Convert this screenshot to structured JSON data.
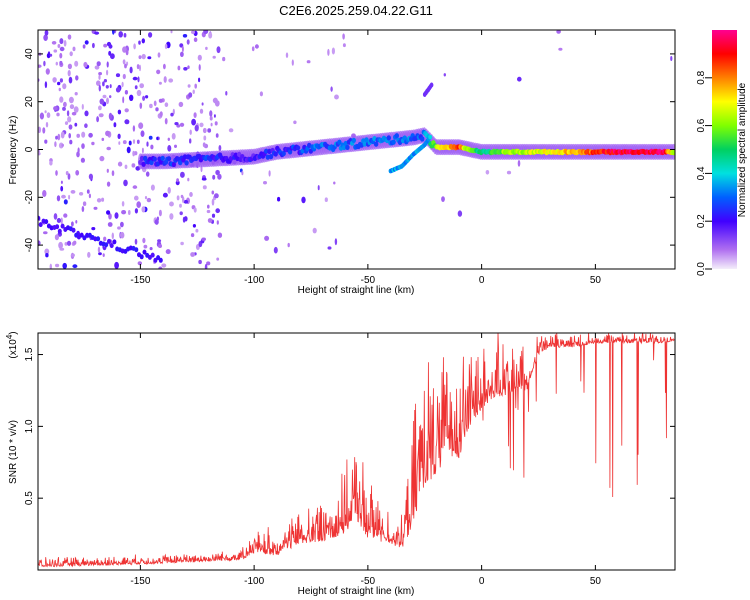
{
  "title": "C2E6.2025.259.04.22.G11",
  "chart_data": [
    {
      "type": "heatmap",
      "name": "spectrogram",
      "xlabel": "Height of straight line (km)",
      "ylabel": "Frequency (Hz)",
      "xlim": [
        -195,
        85
      ],
      "ylim": [
        -50,
        50
      ],
      "xticks": [
        -150,
        -100,
        -50,
        0,
        50
      ],
      "xtick_labels": [
        "-150",
        "-100",
        "-50",
        "0",
        "50"
      ],
      "yticks": [
        -40,
        -20,
        0,
        20,
        40
      ],
      "ytick_labels": [
        "-40",
        "-20",
        "0",
        "20",
        "40"
      ],
      "colorbar": {
        "label": "Normalized spectral amplitude",
        "range": [
          0,
          1
        ],
        "ticks": [
          0.0,
          0.2,
          0.4,
          0.6,
          0.8
        ],
        "tick_labels": [
          "0.0",
          "0.2",
          "0.4",
          "0.6",
          "0.8"
        ]
      },
      "ridge": {
        "x": [
          -150,
          -140,
          -130,
          -120,
          -110,
          -100,
          -90,
          -80,
          -70,
          -60,
          -50,
          -40,
          -30,
          -25,
          -20,
          -15,
          -10,
          -5,
          0,
          10,
          20,
          30,
          40,
          50,
          60,
          70,
          80,
          85
        ],
        "freq": [
          -5,
          -5,
          -4.5,
          -4,
          -3.5,
          -3,
          -1,
          0,
          1,
          2,
          3,
          4,
          5,
          6,
          1,
          1,
          1,
          0,
          -1,
          -1,
          -1,
          -1,
          -1,
          -1,
          -1,
          -1,
          -1,
          -1
        ],
        "amplitude": [
          0.2,
          0.25,
          0.25,
          0.25,
          0.2,
          0.2,
          0.22,
          0.25,
          0.3,
          0.3,
          0.3,
          0.3,
          0.3,
          0.3,
          0.6,
          0.75,
          0.85,
          0.55,
          0.45,
          0.6,
          0.65,
          0.7,
          0.75,
          0.85,
          0.95,
          0.95,
          0.95,
          0.6
        ]
      },
      "branch": {
        "x": [
          -40,
          -35,
          -30,
          -25,
          -22
        ],
        "freq": [
          -9,
          -7,
          -2,
          2,
          6
        ]
      },
      "upper_feature": {
        "x": [
          -25,
          -22
        ],
        "freq": [
          23,
          27
        ]
      }
    },
    {
      "type": "line",
      "name": "snr",
      "xlabel": "Height of straight line (km)",
      "ylabel": "SNR (10 * v/v)",
      "yscale_label": "(x10",
      "yscale_exp": "4",
      "yscale_close": ")",
      "xlim": [
        -195,
        85
      ],
      "ylim": [
        0,
        16500
      ],
      "xticks": [
        -150,
        -100,
        -50,
        0,
        50
      ],
      "xtick_labels": [
        "-150",
        "-100",
        "-50",
        "0",
        "50"
      ],
      "yticks": [
        5000,
        10000,
        15000
      ],
      "ytick_labels": [
        "0.5",
        "1.0",
        "1.5"
      ],
      "color": "#ee3333",
      "envelope": {
        "x": [
          -195,
          -150,
          -120,
          -105,
          -100,
          -90,
          -80,
          -70,
          -60,
          -55,
          -50,
          -40,
          -35,
          -30,
          -28,
          -25,
          -20,
          -15,
          -10,
          -5,
          0,
          5,
          10,
          15,
          20,
          25,
          30,
          40,
          50,
          60,
          70,
          80,
          85
        ],
        "base": [
          200,
          400,
          600,
          700,
          1200,
          1000,
          1800,
          2000,
          2500,
          3500,
          2200,
          1800,
          1500,
          3000,
          4500,
          6000,
          6500,
          8000,
          7800,
          10000,
          11000,
          12000,
          12000,
          12500,
          12500,
          15000,
          15500,
          15500,
          15800,
          15800,
          15800,
          15800,
          16000
        ],
        "peak": [
          800,
          1000,
          1200,
          1500,
          2500,
          3000,
          4000,
          5000,
          6500,
          9000,
          6000,
          4000,
          3500,
          10000,
          13000,
          14500,
          13500,
          15000,
          15000,
          15500,
          16000,
          16000,
          16000,
          16000,
          16000,
          16500,
          16500,
          16500,
          16500,
          16500,
          16500,
          16500,
          16500
        ]
      }
    }
  ]
}
